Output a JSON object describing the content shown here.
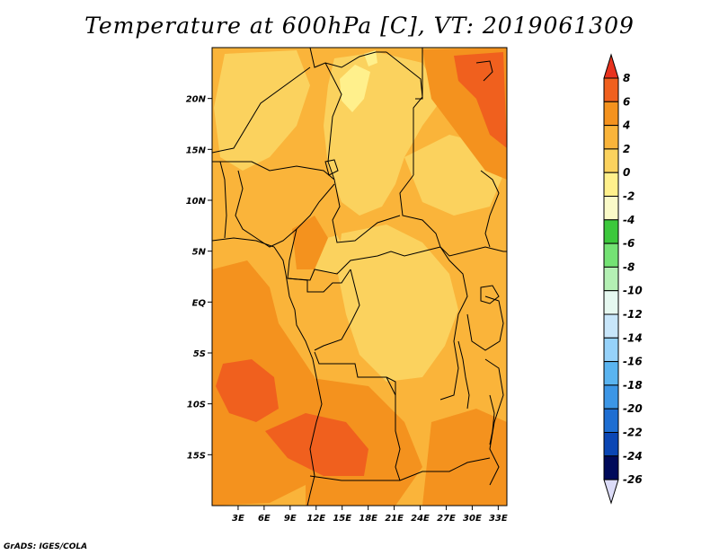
{
  "title": "Temperature at 600hPa [C], VT: 2019061309",
  "credit": "GrADS: IGES/COLA",
  "map": {
    "lon_range": [
      0,
      34
    ],
    "lat_range": [
      -20,
      25
    ],
    "x_ticks": [
      {
        "lon": 3,
        "label": "3E"
      },
      {
        "lon": 6,
        "label": "6E"
      },
      {
        "lon": 9,
        "label": "9E"
      },
      {
        "lon": 12,
        "label": "12E"
      },
      {
        "lon": 15,
        "label": "15E"
      },
      {
        "lon": 18,
        "label": "18E"
      },
      {
        "lon": 21,
        "label": "21E"
      },
      {
        "lon": 24,
        "label": "24E"
      },
      {
        "lon": 27,
        "label": "27E"
      },
      {
        "lon": 30,
        "label": "30E"
      },
      {
        "lon": 33,
        "label": "33E"
      }
    ],
    "y_ticks": [
      {
        "lat": 20,
        "label": "20N"
      },
      {
        "lat": 15,
        "label": "15N"
      },
      {
        "lat": 10,
        "label": "10N"
      },
      {
        "lat": 5,
        "label": "5N"
      },
      {
        "lat": 0,
        "label": "EQ"
      },
      {
        "lat": -5,
        "label": "5S"
      },
      {
        "lat": -10,
        "label": "10S"
      },
      {
        "lat": -15,
        "label": "15S"
      }
    ]
  },
  "colorbar": {
    "labels": [
      "8",
      "6",
      "4",
      "2",
      "0",
      "-2",
      "-4",
      "-6",
      "-8",
      "-10",
      "-12",
      "-14",
      "-16",
      "-18",
      "-20",
      "-22",
      "-24",
      "-26"
    ],
    "colors": [
      "#e8321e",
      "#f0601e",
      "#f4921e",
      "#fab43a",
      "#fbd25e",
      "#fff08c",
      "#fafac8",
      "#3cc83c",
      "#74e274",
      "#b4f0b4",
      "#e6f8f0",
      "#c8e6fa",
      "#96d2fa",
      "#5ab4f0",
      "#3c96e6",
      "#1e6ed2",
      "#0a46b4",
      "#000a5a",
      "#dcdcf8"
    ]
  }
}
